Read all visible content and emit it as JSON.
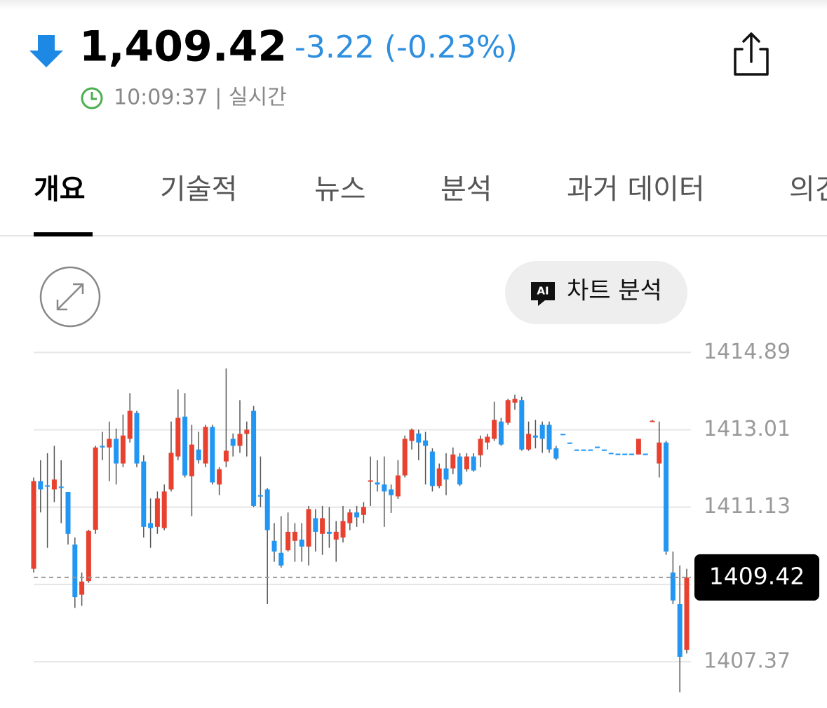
{
  "header": {
    "price": "1,409.42",
    "change": "-3.22 (-0.23%)",
    "time_label": "10:09:37 | 실시간"
  },
  "tabs": [
    "개요",
    "기술적",
    "뉴스",
    "분석",
    "과거 데이터",
    "의견"
  ],
  "ai_button": {
    "icon": "AI",
    "label": "차트 분석"
  },
  "chart_data": {
    "type": "candlestick",
    "open": [
      1409.63,
      1411.76,
      1411.66,
      1411.56,
      1411.63,
      1411.5,
      1410.22,
      1409.0,
      1409.33,
      1410.58,
      1412.62,
      1412.58,
      1412.79,
      1412.19,
      1412.79,
      1413.42,
      1412.24,
      1410.74,
      1410.65,
      1410.62,
      1411.56,
      1412.36,
      1413.33,
      1411.88,
      1412.53,
      1412.19,
      1413.08,
      1411.68,
      1412.24,
      1412.79,
      1412.62,
      1412.91,
      1413.47,
      1411.42,
      1411.56,
      1410.31,
      1410.02,
      1410.08,
      1410.31,
      1410.34,
      1410.17,
      1410.86,
      1410.48,
      1410.53,
      1410.34,
      1410.39,
      1410.74,
      1411.0,
      1410.94,
      1411.76,
      1411.73,
      1411.68,
      1411.56,
      1411.39,
      1411.9,
      1412.74,
      1412.92,
      1412.75,
      1412.48,
      1411.64,
      1412.07,
      1412.07,
      1412.36,
      1412.05,
      1412.36,
      1412.39,
      1412.7,
      1412.79,
      1413.21,
      1413.18,
      1413.67,
      1413.73,
      1412.53,
      1412.87,
      1413.13,
      1413.13,
      1412.56,
      1412.91,
      1412.7,
      1412.53,
      1412.53,
      1412.53,
      1412.6,
      1412.53,
      1412.45,
      1412.43,
      1412.43,
      1412.43,
      1412.41,
      1412.43,
      1413.21,
      1412.19,
      1412.7,
      1409.54,
      1408.77,
      1407.66
    ],
    "high": [
      1411.85,
      1412.27,
      1412.44,
      1412.62,
      1412.27,
      1411.5,
      1410.39,
      1409.54,
      1410.58,
      1412.62,
      1412.96,
      1413.21,
      1413.04,
      1413.38,
      1413.9,
      1413.47,
      1412.39,
      1411.34,
      1411.51,
      1411.68,
      1413.21,
      1413.99,
      1413.9,
      1413.13,
      1412.96,
      1413.13,
      1413.13,
      1412.1,
      1414.5,
      1412.92,
      1413.73,
      1413.21,
      1413.59,
      1412.36,
      1411.59,
      1410.74,
      1410.91,
      1411.0,
      1410.74,
      1410.74,
      1411.16,
      1411.08,
      1411.16,
      1411.13,
      1410.79,
      1411.16,
      1411.08,
      1411.16,
      1411.25,
      1412.36,
      1412.27,
      1412.36,
      1411.68,
      1412.27,
      1412.87,
      1413.04,
      1413.01,
      1412.96,
      1412.56,
      1412.19,
      1412.44,
      1412.58,
      1412.44,
      1412.44,
      1412.44,
      1412.87,
      1412.91,
      1413.69,
      1413.3,
      1413.76,
      1413.86,
      1413.81,
      1413.21,
      1413.25,
      1413.21,
      1413.21,
      1412.62,
      1412.91,
      1412.7,
      1412.53,
      1412.53,
      1412.53,
      1412.6,
      1412.53,
      1412.45,
      1412.43,
      1412.43,
      1412.43,
      1412.79,
      1412.43,
      1413.25,
      1413.21,
      1412.74,
      1410.05,
      1409.71,
      1409.63
    ],
    "low": [
      1409.54,
      1411.0,
      1410.14,
      1411.25,
      1410.74,
      1410.22,
      1408.68,
      1408.73,
      1409.29,
      1410.48,
      1412.27,
      1411.76,
      1411.68,
      1412.1,
      1412.7,
      1412.1,
      1410.39,
      1410.14,
      1410.48,
      1410.57,
      1411.51,
      1412.27,
      1411.85,
      1410.91,
      1412.19,
      1412.1,
      1411.68,
      1411.42,
      1412.1,
      1412.36,
      1412.45,
      1412.36,
      1411.13,
      1411.13,
      1408.77,
      1409.8,
      1409.66,
      1410.05,
      1409.8,
      1409.8,
      1409.71,
      1410.05,
      1409.97,
      1410.14,
      1409.8,
      1410.27,
      1410.57,
      1410.65,
      1410.74,
      1411.16,
      1411.51,
      1410.65,
      1410.99,
      1411.33,
      1411.85,
      1412.53,
      1412.27,
      1411.68,
      1411.51,
      1411.59,
      1411.42,
      1411.93,
      1411.64,
      1411.99,
      1411.99,
      1412.1,
      1412.53,
      1412.74,
      1412.62,
      1413.13,
      1413.5,
      1412.5,
      1412.5,
      1412.56,
      1412.45,
      1412.45,
      1412.27,
      1412.89,
      1412.68,
      1412.51,
      1412.51,
      1412.51,
      1412.58,
      1412.51,
      1412.43,
      1412.41,
      1412.41,
      1412.41,
      1412.41,
      1412.41,
      1413.21,
      1411.85,
      1409.97,
      1408.77,
      1406.63,
      1407.57
    ],
    "close": [
      1411.76,
      1411.56,
      1411.64,
      1411.8,
      1411.62,
      1410.48,
      1408.94,
      1409.32,
      1410.55,
      1412.58,
      1412.58,
      1412.79,
      1412.19,
      1412.87,
      1413.47,
      1412.19,
      1410.65,
      1410.62,
      1411.34,
      1411.51,
      1412.45,
      1413.3,
      1411.9,
      1412.65,
      1412.27,
      1413.08,
      1411.73,
      1412.05,
      1412.5,
      1412.62,
      1412.91,
      1413.01,
      1411.16,
      1411.4,
      1410.57,
      1410.05,
      1409.71,
      1410.53,
      1410.53,
      1410.17,
      1411.08,
      1410.53,
      1410.86,
      1410.48,
      1410.53,
      1410.79,
      1411.0,
      1410.88,
      1411.13,
      1411.78,
      1411.68,
      1411.51,
      1411.42,
      1411.9,
      1412.79,
      1413.01,
      1412.7,
      1412.62,
      1411.64,
      1412.07,
      1411.8,
      1412.41,
      1411.68,
      1412.36,
      1412.02,
      1412.79,
      1412.84,
      1413.25,
      1412.65,
      1413.73,
      1413.76,
      1412.53,
      1412.91,
      1412.82,
      1412.79,
      1412.53,
      1412.31,
      1412.89,
      1412.68,
      1412.51,
      1412.51,
      1412.51,
      1412.58,
      1412.51,
      1412.43,
      1412.41,
      1412.41,
      1412.41,
      1412.79,
      1412.41,
      1413.23,
      1412.7,
      1410.05,
      1408.86,
      1407.49,
      1409.42
    ],
    "up_color": "#e8412f",
    "down_color": "#2196f3",
    "ylim": [
      1406.57,
      1415.27
    ],
    "yticks": [
      1407.37,
      1409.25,
      1411.13,
      1413.01,
      1414.89
    ],
    "grid": true,
    "last_price": 1409.42
  }
}
